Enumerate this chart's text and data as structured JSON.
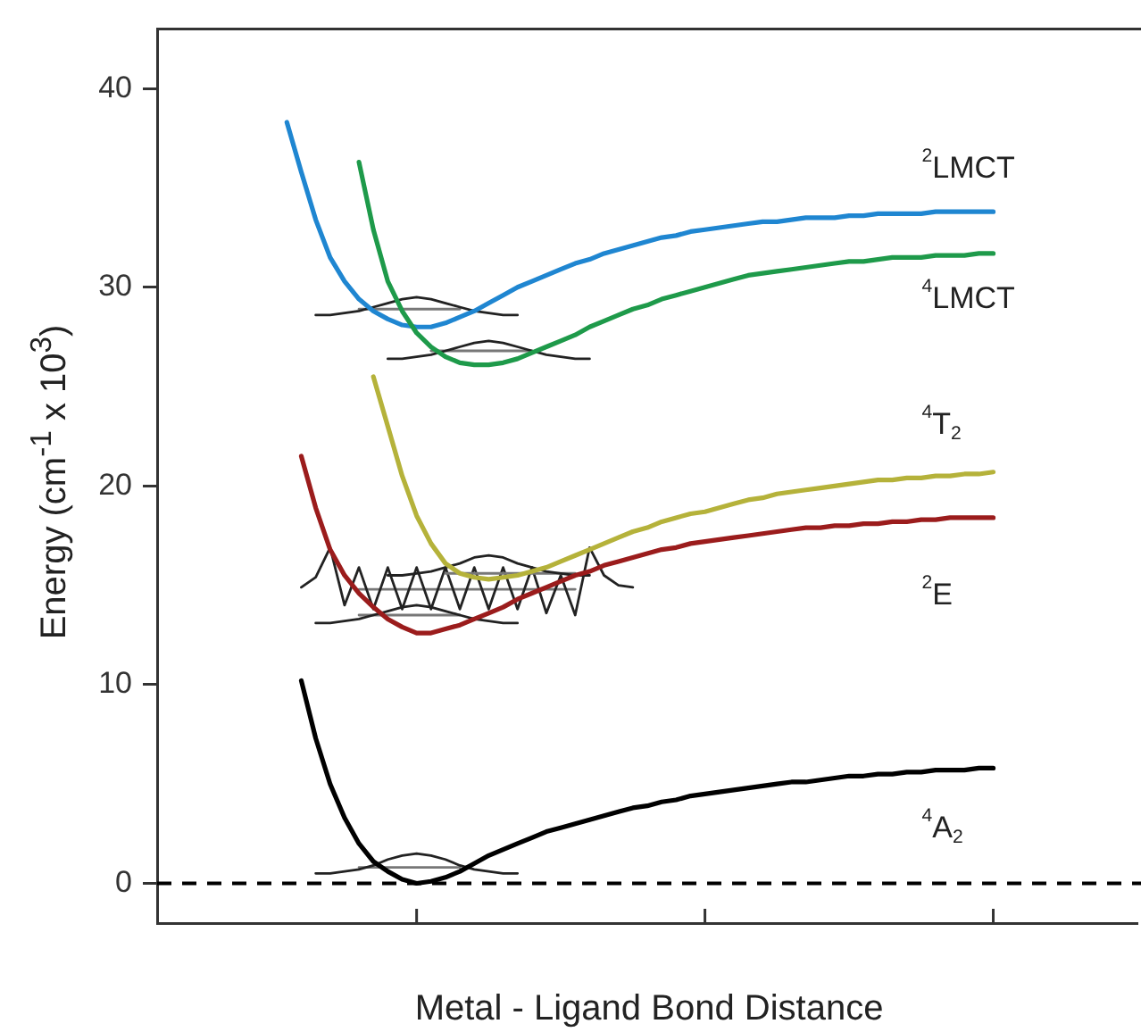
{
  "chart_data": {
    "type": "line",
    "xlabel": "Metal - Ligand Bond Distance",
    "ylabel": "Energy (cm$^{-1}$ x 10$^{3}$)",
    "categories": [
      null,
      null,
      null,
      null,
      null,
      null,
      null,
      null,
      null,
      null,
      null,
      null,
      null,
      null,
      null,
      null,
      null,
      null,
      null,
      null,
      null,
      null,
      null,
      null,
      null,
      null,
      null,
      null,
      null,
      null,
      null,
      null,
      null,
      null,
      null,
      null,
      null,
      null,
      null,
      null,
      null,
      null,
      null,
      null,
      null,
      null,
      null,
      null,
      null,
      null,
      null,
      null,
      null,
      null,
      null,
      null,
      null,
      null,
      null,
      null,
      null,
      null,
      null,
      null,
      null,
      null,
      null,
      null,
      null
    ],
    "ylim": [
      -2,
      43
    ],
    "yticks": [
      0,
      10,
      20,
      30,
      40
    ],
    "tick_labels": "y",
    "grid": false,
    "legend": false,
    "marker": "none",
    "line_style": "solid",
    "ref_lines": [
      {
        "axis": "y",
        "value": 0,
        "color": "#000000",
        "line_style": "dashed"
      }
    ],
    "series": [
      {
        "name": "$^{4}$A$_{2}$",
        "color": "#000000",
        "values": [
          null,
          null,
          null,
          null,
          null,
          null,
          null,
          null,
          null,
          null,
          10.2,
          7.3,
          5.0,
          3.3,
          2.0,
          1.1,
          0.6,
          0.2,
          0,
          0.1,
          0.3,
          0.6,
          1.0,
          1.4,
          1.7,
          2.0,
          2.3,
          2.6,
          2.8,
          3.0,
          3.2,
          3.4,
          3.6,
          3.8,
          3.9,
          4.1,
          4.2,
          4.4,
          4.5,
          4.6,
          4.7,
          4.8,
          4.9,
          5.0,
          5.1,
          5.1,
          5.2,
          5.3,
          5.4,
          5.4,
          5.5,
          5.5,
          5.6,
          5.6,
          5.7,
          5.7,
          5.7,
          5.8,
          5.8,
          null,
          null,
          null,
          null,
          null,
          null,
          null,
          null,
          null,
          null
        ]
      },
      {
        "name": "$^{2}$E",
        "color": "#9b1c1c",
        "values": [
          null,
          null,
          null,
          null,
          null,
          null,
          null,
          null,
          null,
          null,
          21.5,
          18.9,
          16.8,
          15.5,
          14.6,
          13.9,
          13.3,
          12.9,
          12.6,
          12.6,
          12.8,
          13.0,
          13.3,
          13.6,
          13.9,
          14.3,
          14.6,
          14.9,
          15.2,
          15.5,
          15.7,
          16.0,
          16.2,
          16.4,
          16.6,
          16.8,
          16.9,
          17.1,
          17.2,
          17.3,
          17.4,
          17.5,
          17.6,
          17.7,
          17.8,
          17.9,
          17.9,
          18.0,
          18.0,
          18.1,
          18.1,
          18.2,
          18.2,
          18.3,
          18.3,
          18.4,
          18.4,
          18.4,
          18.4,
          null,
          null,
          null,
          null,
          null,
          null,
          null,
          null,
          null,
          null
        ]
      },
      {
        "name": "$^{4}$T$_{2}$",
        "color": "#b5b23a",
        "values": [
          null,
          null,
          null,
          null,
          null,
          null,
          null,
          null,
          null,
          null,
          null,
          null,
          null,
          null,
          null,
          25.5,
          23.0,
          20.5,
          18.5,
          17.1,
          16.1,
          15.6,
          15.4,
          15.3,
          15.4,
          15.5,
          15.7,
          15.9,
          16.2,
          16.5,
          16.8,
          17.1,
          17.4,
          17.7,
          17.9,
          18.2,
          18.4,
          18.6,
          18.7,
          18.9,
          19.1,
          19.3,
          19.4,
          19.6,
          19.7,
          19.8,
          19.9,
          20.0,
          20.1,
          20.2,
          20.3,
          20.3,
          20.4,
          20.4,
          20.5,
          20.5,
          20.6,
          20.6,
          20.7,
          null,
          null,
          null,
          null,
          null,
          null,
          null,
          null,
          null,
          null
        ]
      },
      {
        "name": "$^{4}$LMCT",
        "color": "#1e9a4a",
        "values": [
          null,
          null,
          null,
          null,
          null,
          null,
          null,
          null,
          null,
          null,
          null,
          null,
          null,
          null,
          36.3,
          32.9,
          30.3,
          28.8,
          27.7,
          27.0,
          26.5,
          26.2,
          26.1,
          26.1,
          26.2,
          26.4,
          26.7,
          27.0,
          27.3,
          27.6,
          28.0,
          28.3,
          28.6,
          28.9,
          29.1,
          29.4,
          29.6,
          29.8,
          30.0,
          30.2,
          30.4,
          30.6,
          30.7,
          30.8,
          30.9,
          31.0,
          31.1,
          31.2,
          31.3,
          31.3,
          31.4,
          31.5,
          31.5,
          31.5,
          31.6,
          31.6,
          31.6,
          31.7,
          31.7,
          null,
          null,
          null,
          null,
          null,
          null,
          null,
          null,
          null,
          null
        ]
      },
      {
        "name": "$^{2}$LMCT",
        "color": "#1f86d1",
        "values": [
          null,
          null,
          null,
          null,
          null,
          null,
          null,
          null,
          null,
          38.3,
          35.8,
          33.4,
          31.5,
          30.3,
          29.4,
          28.8,
          28.4,
          28.1,
          28.0,
          28.0,
          28.2,
          28.5,
          28.8,
          29.2,
          29.6,
          30.0,
          30.3,
          30.6,
          30.9,
          31.2,
          31.4,
          31.7,
          31.9,
          32.1,
          32.3,
          32.5,
          32.6,
          32.8,
          32.9,
          33.0,
          33.1,
          33.2,
          33.3,
          33.3,
          33.4,
          33.5,
          33.5,
          33.5,
          33.6,
          33.6,
          33.7,
          33.7,
          33.7,
          33.7,
          33.8,
          33.8,
          33.8,
          33.8,
          33.8,
          null,
          null,
          null,
          null,
          null,
          null,
          null,
          null,
          null,
          null
        ]
      },
      {
        "color": "#222222",
        "values": [
          null,
          null,
          null,
          null,
          null,
          null,
          null,
          null,
          null,
          null,
          null,
          0.5,
          0.5,
          0.6,
          0.7,
          0.9,
          1.2,
          1.4,
          1.5,
          1.4,
          1.2,
          0.9,
          0.7,
          0.6,
          0.5,
          0.5,
          null,
          null,
          null,
          null,
          null,
          null,
          null,
          null,
          null,
          null,
          null,
          null,
          null,
          null,
          null,
          null,
          null,
          null,
          null,
          null,
          null,
          null,
          null,
          null,
          null,
          null,
          null,
          null,
          null,
          null,
          null,
          null,
          null,
          null,
          null,
          null,
          null,
          null,
          null,
          null,
          null,
          null,
          null
        ]
      },
      {
        "color": "#777777",
        "values": [
          null,
          null,
          null,
          null,
          null,
          null,
          null,
          null,
          null,
          null,
          null,
          null,
          null,
          null,
          0.8,
          0.8,
          0.8,
          0.8,
          0.8,
          0.8,
          0.8,
          0.8,
          null,
          null,
          null,
          null,
          null,
          null,
          null,
          null,
          null,
          null,
          null,
          null,
          null,
          null,
          null,
          null,
          null,
          null,
          null,
          null,
          null,
          null,
          null,
          null,
          null,
          null,
          null,
          null,
          null,
          null,
          null,
          null,
          null,
          null,
          null,
          null,
          null,
          null,
          null,
          null,
          null,
          null,
          null,
          null,
          null,
          null,
          null
        ]
      },
      {
        "color": "#222222",
        "values": [
          null,
          null,
          null,
          null,
          null,
          null,
          null,
          null,
          null,
          null,
          null,
          13.1,
          13.1,
          13.2,
          13.3,
          13.5,
          13.7,
          13.9,
          14.0,
          13.9,
          13.7,
          13.5,
          13.3,
          13.2,
          13.1,
          13.1,
          null,
          null,
          null,
          null,
          null,
          null,
          null,
          null,
          null,
          null,
          null,
          null,
          null,
          null,
          null,
          null,
          null,
          null,
          null,
          null,
          null,
          null,
          null,
          null,
          null,
          null,
          null,
          null,
          null,
          null,
          null,
          null,
          null,
          null,
          null,
          null,
          null,
          null,
          null,
          null,
          null,
          null,
          null
        ]
      },
      {
        "color": "#777777",
        "values": [
          null,
          null,
          null,
          null,
          null,
          null,
          null,
          null,
          null,
          null,
          null,
          null,
          null,
          null,
          13.5,
          13.5,
          13.5,
          13.5,
          13.5,
          13.5,
          13.5,
          13.5,
          null,
          null,
          null,
          null,
          null,
          null,
          null,
          null,
          null,
          null,
          null,
          null,
          null,
          null,
          null,
          null,
          null,
          null,
          null,
          null,
          null,
          null,
          null,
          null,
          null,
          null,
          null,
          null,
          null,
          null,
          null,
          null,
          null,
          null,
          null,
          null,
          null,
          null,
          null,
          null,
          null,
          null,
          null,
          null,
          null,
          null,
          null
        ]
      },
      {
        "color": "#222222",
        "values": [
          null,
          null,
          null,
          null,
          null,
          null,
          null,
          null,
          null,
          null,
          null,
          28.6,
          28.6,
          28.7,
          28.8,
          29.0,
          29.2,
          29.4,
          29.5,
          29.4,
          29.2,
          29.0,
          28.8,
          28.7,
          28.6,
          28.6,
          null,
          null,
          null,
          null,
          null,
          null,
          null,
          null,
          null,
          null,
          null,
          null,
          null,
          null,
          null,
          null,
          null,
          null,
          null,
          null,
          null,
          null,
          null,
          null,
          null,
          null,
          null,
          null,
          null,
          null,
          null,
          null,
          null,
          null,
          null,
          null,
          null,
          null,
          null,
          null,
          null,
          null,
          null
        ]
      },
      {
        "color": "#777777",
        "values": [
          null,
          null,
          null,
          null,
          null,
          null,
          null,
          null,
          null,
          null,
          null,
          null,
          null,
          null,
          28.9,
          28.9,
          28.9,
          28.9,
          28.9,
          28.9,
          28.9,
          28.9,
          null,
          null,
          null,
          null,
          null,
          null,
          null,
          null,
          null,
          null,
          null,
          null,
          null,
          null,
          null,
          null,
          null,
          null,
          null,
          null,
          null,
          null,
          null,
          null,
          null,
          null,
          null,
          null,
          null,
          null,
          null,
          null,
          null,
          null,
          null,
          null,
          null,
          null,
          null,
          null,
          null,
          null,
          null,
          null,
          null,
          null,
          null
        ]
      },
      {
        "color": "#222222",
        "values": [
          null,
          null,
          null,
          null,
          null,
          null,
          null,
          null,
          null,
          null,
          null,
          null,
          null,
          null,
          null,
          null,
          26.4,
          26.4,
          26.5,
          26.6,
          26.8,
          27.0,
          27.2,
          27.3,
          27.2,
          27.0,
          26.8,
          26.6,
          26.5,
          26.4,
          26.4,
          null,
          null,
          null,
          null,
          null,
          null,
          null,
          null,
          null,
          null,
          null,
          null,
          null,
          null,
          null,
          null,
          null,
          null,
          null,
          null,
          null,
          null,
          null,
          null,
          null,
          null,
          null,
          null,
          null,
          null,
          null,
          null,
          null,
          null,
          null,
          null,
          null,
          null
        ]
      },
      {
        "color": "#777777",
        "values": [
          null,
          null,
          null,
          null,
          null,
          null,
          null,
          null,
          null,
          null,
          null,
          null,
          null,
          null,
          null,
          null,
          null,
          null,
          null,
          26.8,
          26.8,
          26.8,
          26.8,
          26.8,
          26.8,
          26.8,
          26.8,
          null,
          null,
          null,
          null,
          null,
          null,
          null,
          null,
          null,
          null,
          null,
          null,
          null,
          null,
          null,
          null,
          null,
          null,
          null,
          null,
          null,
          null,
          null,
          null,
          null,
          null,
          null,
          null,
          null,
          null,
          null,
          null,
          null,
          null,
          null,
          null,
          null,
          null,
          null,
          null,
          null,
          null
        ]
      },
      {
        "color": "#222222",
        "values": [
          null,
          null,
          null,
          null,
          null,
          null,
          null,
          null,
          null,
          null,
          null,
          null,
          null,
          null,
          null,
          null,
          15.5,
          15.5,
          15.6,
          15.7,
          15.9,
          16.1,
          16.4,
          16.5,
          16.4,
          16.1,
          15.9,
          15.7,
          15.6,
          15.5,
          15.5,
          null,
          null,
          null,
          null,
          null,
          null,
          null,
          null,
          null,
          null,
          null,
          null,
          null,
          null,
          null,
          null,
          null,
          null,
          null,
          null,
          null,
          null,
          null,
          null,
          null,
          null,
          null,
          null,
          null,
          null,
          null,
          null,
          null,
          null,
          null,
          null,
          null,
          null
        ]
      },
      {
        "color": "#777777",
        "values": [
          null,
          null,
          null,
          null,
          null,
          null,
          null,
          null,
          null,
          null,
          null,
          null,
          null,
          null,
          null,
          null,
          null,
          null,
          null,
          null,
          15.6,
          15.6,
          15.6,
          15.6,
          15.6,
          15.6,
          15.6,
          15.6,
          15.6,
          15.6,
          null,
          null,
          null,
          null,
          null,
          null,
          null,
          null,
          null,
          null,
          null,
          null,
          null,
          null,
          null,
          null,
          null,
          null,
          null,
          null,
          null,
          null,
          null,
          null,
          null,
          null,
          null,
          null,
          null,
          null,
          null,
          null,
          null,
          null,
          null,
          null,
          null,
          null,
          null
        ]
      },
      {
        "color": "#222222",
        "values": [
          null,
          null,
          null,
          null,
          null,
          null,
          null,
          null,
          null,
          null,
          14.9,
          15.4,
          16.9,
          14.0,
          15.9,
          13.8,
          15.9,
          13.8,
          15.9,
          13.8,
          15.9,
          13.8,
          15.9,
          13.8,
          15.9,
          13.8,
          15.9,
          13.6,
          15.5,
          13.5,
          16.9,
          15.5,
          15.0,
          14.9,
          null,
          null,
          null,
          null,
          null,
          null,
          null,
          null,
          null,
          null,
          null,
          null,
          null,
          null,
          null,
          null,
          null,
          null,
          null,
          null,
          null,
          null,
          null,
          null,
          null,
          null,
          null,
          null,
          null,
          null,
          null,
          null,
          null,
          null,
          null
        ]
      },
      {
        "color": "#777777",
        "values": [
          null,
          null,
          null,
          null,
          null,
          null,
          null,
          null,
          null,
          null,
          null,
          null,
          null,
          null,
          14.8,
          14.8,
          14.8,
          14.8,
          14.8,
          14.8,
          14.8,
          14.8,
          14.8,
          14.8,
          14.8,
          14.8,
          14.8,
          14.8,
          14.8,
          14.8,
          null,
          null,
          null,
          null,
          null,
          null,
          null,
          null,
          null,
          null,
          null,
          null,
          null,
          null,
          null,
          null,
          null,
          null,
          null,
          null,
          null,
          null,
          null,
          null,
          null,
          null,
          null,
          null,
          null,
          null,
          null,
          null,
          null,
          null,
          null,
          null,
          null,
          null,
          null
        ]
      }
    ]
  }
}
